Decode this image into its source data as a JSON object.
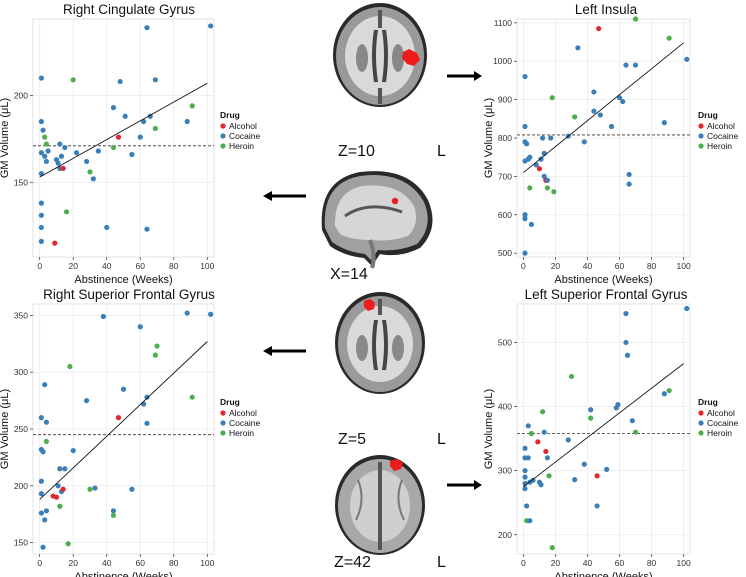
{
  "colors": {
    "Alcohol": "#e3262d",
    "Cocaine": "#3a7fb8",
    "Heroin": "#4cae4c",
    "grid": "#ebebeb",
    "roi": "#ee1c1c"
  },
  "legend": {
    "title": "Drug",
    "items": [
      "Alcohol",
      "Cocaine",
      "Heroin"
    ]
  },
  "slices": {
    "z10": {
      "label": "Z=10",
      "side": "L"
    },
    "x14": {
      "label": "X=14"
    },
    "z5": {
      "label": "Z=5",
      "side": "L"
    },
    "z42": {
      "label": "Z=42",
      "side": "L"
    }
  },
  "chart_data": [
    {
      "type": "scatter",
      "title": "Right Cingulate Gyrus",
      "xlabel": "Abstinence (Weeks)",
      "ylabel": "GM Volume (μL)",
      "xlim": [
        -4,
        104
      ],
      "ylim": [
        107,
        244
      ],
      "xticks": [
        0,
        20,
        40,
        60,
        80,
        100
      ],
      "yticks": [
        150,
        200
      ],
      "ref_line": 171,
      "fit": [
        [
          0,
          153
        ],
        [
          100,
          207
        ]
      ],
      "points": [
        [
          1,
          210,
          "Cocaine"
        ],
        [
          1,
          185,
          "Cocaine"
        ],
        [
          1,
          167,
          "Cocaine"
        ],
        [
          1,
          155,
          "Cocaine"
        ],
        [
          1,
          138,
          "Cocaine"
        ],
        [
          1,
          131,
          "Cocaine"
        ],
        [
          1,
          124,
          "Cocaine"
        ],
        [
          1,
          116,
          "Cocaine"
        ],
        [
          2,
          180,
          "Cocaine"
        ],
        [
          3,
          176,
          "Heroin"
        ],
        [
          3,
          165,
          "Cocaine"
        ],
        [
          4,
          172,
          "Heroin"
        ],
        [
          4,
          162,
          "Cocaine"
        ],
        [
          5,
          168,
          "Cocaine"
        ],
        [
          9,
          115,
          "Alcohol"
        ],
        [
          10,
          163,
          "Cocaine"
        ],
        [
          11,
          161,
          "Cocaine"
        ],
        [
          12,
          158,
          "Cocaine"
        ],
        [
          12,
          172,
          "Cocaine"
        ],
        [
          13,
          165,
          "Cocaine"
        ],
        [
          14,
          158,
          "Alcohol"
        ],
        [
          15,
          170,
          "Cocaine"
        ],
        [
          16,
          133,
          "Heroin"
        ],
        [
          20,
          209,
          "Heroin"
        ],
        [
          22,
          167,
          "Cocaine"
        ],
        [
          28,
          162,
          "Cocaine"
        ],
        [
          30,
          156,
          "Heroin"
        ],
        [
          32,
          152,
          "Cocaine"
        ],
        [
          35,
          168,
          "Cocaine"
        ],
        [
          40,
          124,
          "Cocaine"
        ],
        [
          44,
          193,
          "Cocaine"
        ],
        [
          44,
          170,
          "Heroin"
        ],
        [
          47,
          176,
          "Alcohol"
        ],
        [
          48,
          208,
          "Cocaine"
        ],
        [
          51,
          188,
          "Cocaine"
        ],
        [
          55,
          166,
          "Cocaine"
        ],
        [
          60,
          176,
          "Cocaine"
        ],
        [
          62,
          185,
          "Cocaine"
        ],
        [
          64,
          239,
          "Cocaine"
        ],
        [
          64,
          123,
          "Cocaine"
        ],
        [
          66,
          188,
          "Cocaine"
        ],
        [
          69,
          209,
          "Cocaine"
        ],
        [
          69,
          181,
          "Heroin"
        ],
        [
          88,
          185,
          "Cocaine"
        ],
        [
          91,
          194,
          "Heroin"
        ],
        [
          102,
          240,
          "Cocaine"
        ]
      ]
    },
    {
      "type": "scatter",
      "title": "Left Insula",
      "xlabel": "Abstinence (Weeks)",
      "ylabel": "GM Volume (μL)",
      "xlim": [
        -4,
        104
      ],
      "ylim": [
        490,
        1110
      ],
      "xticks": [
        0,
        20,
        40,
        60,
        80,
        100
      ],
      "yticks": [
        500,
        600,
        700,
        800,
        900,
        1000,
        1100
      ],
      "ref_line": 808,
      "fit": [
        [
          0,
          710
        ],
        [
          100,
          1048
        ]
      ],
      "points": [
        [
          1,
          960,
          "Cocaine"
        ],
        [
          1,
          830,
          "Cocaine"
        ],
        [
          1,
          790,
          "Cocaine"
        ],
        [
          1,
          740,
          "Cocaine"
        ],
        [
          1,
          600,
          "Cocaine"
        ],
        [
          1,
          590,
          "Cocaine"
        ],
        [
          1,
          500,
          "Cocaine"
        ],
        [
          2,
          785,
          "Cocaine"
        ],
        [
          3,
          745,
          "Cocaine"
        ],
        [
          4,
          750,
          "Cocaine"
        ],
        [
          4,
          670,
          "Heroin"
        ],
        [
          5,
          575,
          "Cocaine"
        ],
        [
          8,
          730,
          "Cocaine"
        ],
        [
          10,
          720,
          "Alcohol"
        ],
        [
          11,
          745,
          "Cocaine"
        ],
        [
          12,
          800,
          "Cocaine"
        ],
        [
          13,
          760,
          "Cocaine"
        ],
        [
          13,
          700,
          "Cocaine"
        ],
        [
          14,
          690,
          "Alcohol"
        ],
        [
          15,
          690,
          "Cocaine"
        ],
        [
          15,
          670,
          "Heroin"
        ],
        [
          17,
          800,
          "Cocaine"
        ],
        [
          18,
          905,
          "Heroin"
        ],
        [
          19,
          660,
          "Heroin"
        ],
        [
          28,
          805,
          "Cocaine"
        ],
        [
          32,
          855,
          "Heroin"
        ],
        [
          34,
          1035,
          "Cocaine"
        ],
        [
          38,
          790,
          "Cocaine"
        ],
        [
          44,
          870,
          "Cocaine"
        ],
        [
          44,
          920,
          "Cocaine"
        ],
        [
          47,
          1085,
          "Alcohol"
        ],
        [
          48,
          860,
          "Cocaine"
        ],
        [
          55,
          830,
          "Cocaine"
        ],
        [
          60,
          905,
          "Cocaine"
        ],
        [
          62,
          895,
          "Cocaine"
        ],
        [
          64,
          990,
          "Cocaine"
        ],
        [
          66,
          705,
          "Cocaine"
        ],
        [
          66,
          680,
          "Cocaine"
        ],
        [
          70,
          990,
          "Cocaine"
        ],
        [
          70,
          1110,
          "Heroin"
        ],
        [
          88,
          840,
          "Cocaine"
        ],
        [
          91,
          1060,
          "Heroin"
        ],
        [
          102,
          1005,
          "Cocaine"
        ]
      ]
    },
    {
      "type": "scatter",
      "title": "Right Superior Frontal Gyrus",
      "xlabel": "Abstinence (Weeks)",
      "ylabel": "GM Volume (μL)",
      "xlim": [
        -4,
        104
      ],
      "ylim": [
        140,
        360
      ],
      "xticks": [
        0,
        20,
        40,
        60,
        80,
        100
      ],
      "yticks": [
        150,
        200,
        250,
        300,
        350
      ],
      "ref_line": 245,
      "fit": [
        [
          0,
          188
        ],
        [
          100,
          327
        ]
      ],
      "points": [
        [
          1,
          260,
          "Cocaine"
        ],
        [
          1,
          232,
          "Cocaine"
        ],
        [
          1,
          204,
          "Cocaine"
        ],
        [
          1,
          193,
          "Cocaine"
        ],
        [
          1,
          176,
          "Cocaine"
        ],
        [
          2,
          146,
          "Cocaine"
        ],
        [
          2,
          230,
          "Cocaine"
        ],
        [
          3,
          170,
          "Cocaine"
        ],
        [
          3,
          289,
          "Cocaine"
        ],
        [
          4,
          256,
          "Cocaine"
        ],
        [
          4,
          239,
          "Heroin"
        ],
        [
          4,
          178,
          "Cocaine"
        ],
        [
          8,
          191,
          "Alcohol"
        ],
        [
          10,
          190,
          "Alcohol"
        ],
        [
          11,
          200,
          "Cocaine"
        ],
        [
          12,
          215,
          "Cocaine"
        ],
        [
          12,
          182,
          "Heroin"
        ],
        [
          13,
          195,
          "Cocaine"
        ],
        [
          14,
          197,
          "Alcohol"
        ],
        [
          15,
          215,
          "Cocaine"
        ],
        [
          17,
          149,
          "Heroin"
        ],
        [
          18,
          305,
          "Heroin"
        ],
        [
          20,
          231,
          "Cocaine"
        ],
        [
          28,
          275,
          "Cocaine"
        ],
        [
          30,
          197,
          "Heroin"
        ],
        [
          33,
          198,
          "Cocaine"
        ],
        [
          38,
          349,
          "Cocaine"
        ],
        [
          44,
          178,
          "Cocaine"
        ],
        [
          44,
          174,
          "Heroin"
        ],
        [
          47,
          260,
          "Alcohol"
        ],
        [
          50,
          285,
          "Cocaine"
        ],
        [
          55,
          197,
          "Cocaine"
        ],
        [
          60,
          340,
          "Cocaine"
        ],
        [
          62,
          272,
          "Cocaine"
        ],
        [
          64,
          255,
          "Cocaine"
        ],
        [
          64,
          278,
          "Cocaine"
        ],
        [
          69,
          315,
          "Heroin"
        ],
        [
          70,
          323,
          "Heroin"
        ],
        [
          88,
          352,
          "Cocaine"
        ],
        [
          91,
          278,
          "Heroin"
        ],
        [
          102,
          351,
          "Cocaine"
        ]
      ]
    },
    {
      "type": "scatter",
      "title": "Left Superior Frontal Gyrus",
      "xlabel": "Abstinence (Weeks)",
      "ylabel": "GM Volume (μL)",
      "xlim": [
        -4,
        104
      ],
      "ylim": [
        170,
        560
      ],
      "xticks": [
        0,
        20,
        40,
        60,
        80,
        100
      ],
      "yticks": [
        200,
        300,
        400,
        500
      ],
      "ref_line": 358,
      "fit": [
        [
          0,
          275
        ],
        [
          100,
          467
        ]
      ],
      "points": [
        [
          1,
          335,
          "Cocaine"
        ],
        [
          1,
          320,
          "Cocaine"
        ],
        [
          1,
          300,
          "Cocaine"
        ],
        [
          1,
          290,
          "Cocaine"
        ],
        [
          1,
          280,
          "Cocaine"
        ],
        [
          1,
          272,
          "Cocaine"
        ],
        [
          2,
          245,
          "Cocaine"
        ],
        [
          2,
          222,
          "Heroin"
        ],
        [
          3,
          370,
          "Cocaine"
        ],
        [
          3,
          320,
          "Cocaine"
        ],
        [
          4,
          222,
          "Cocaine"
        ],
        [
          4,
          282,
          "Cocaine"
        ],
        [
          5,
          358,
          "Heroin"
        ],
        [
          6,
          285,
          "Cocaine"
        ],
        [
          9,
          345,
          "Alcohol"
        ],
        [
          10,
          282,
          "Cocaine"
        ],
        [
          11,
          278,
          "Cocaine"
        ],
        [
          12,
          392,
          "Heroin"
        ],
        [
          13,
          360,
          "Cocaine"
        ],
        [
          14,
          330,
          "Alcohol"
        ],
        [
          15,
          320,
          "Cocaine"
        ],
        [
          16,
          292,
          "Heroin"
        ],
        [
          18,
          180,
          "Heroin"
        ],
        [
          28,
          348,
          "Cocaine"
        ],
        [
          30,
          447,
          "Heroin"
        ],
        [
          32,
          286,
          "Cocaine"
        ],
        [
          38,
          310,
          "Cocaine"
        ],
        [
          42,
          382,
          "Heroin"
        ],
        [
          42,
          395,
          "Cocaine"
        ],
        [
          46,
          292,
          "Alcohol"
        ],
        [
          46,
          245,
          "Cocaine"
        ],
        [
          52,
          302,
          "Cocaine"
        ],
        [
          58,
          398,
          "Cocaine"
        ],
        [
          59,
          403,
          "Cocaine"
        ],
        [
          64,
          545,
          "Cocaine"
        ],
        [
          64,
          500,
          "Cocaine"
        ],
        [
          65,
          480,
          "Cocaine"
        ],
        [
          68,
          378,
          "Cocaine"
        ],
        [
          70,
          360,
          "Heroin"
        ],
        [
          88,
          420,
          "Cocaine"
        ],
        [
          91,
          425,
          "Heroin"
        ],
        [
          102,
          553,
          "Cocaine"
        ]
      ]
    }
  ]
}
